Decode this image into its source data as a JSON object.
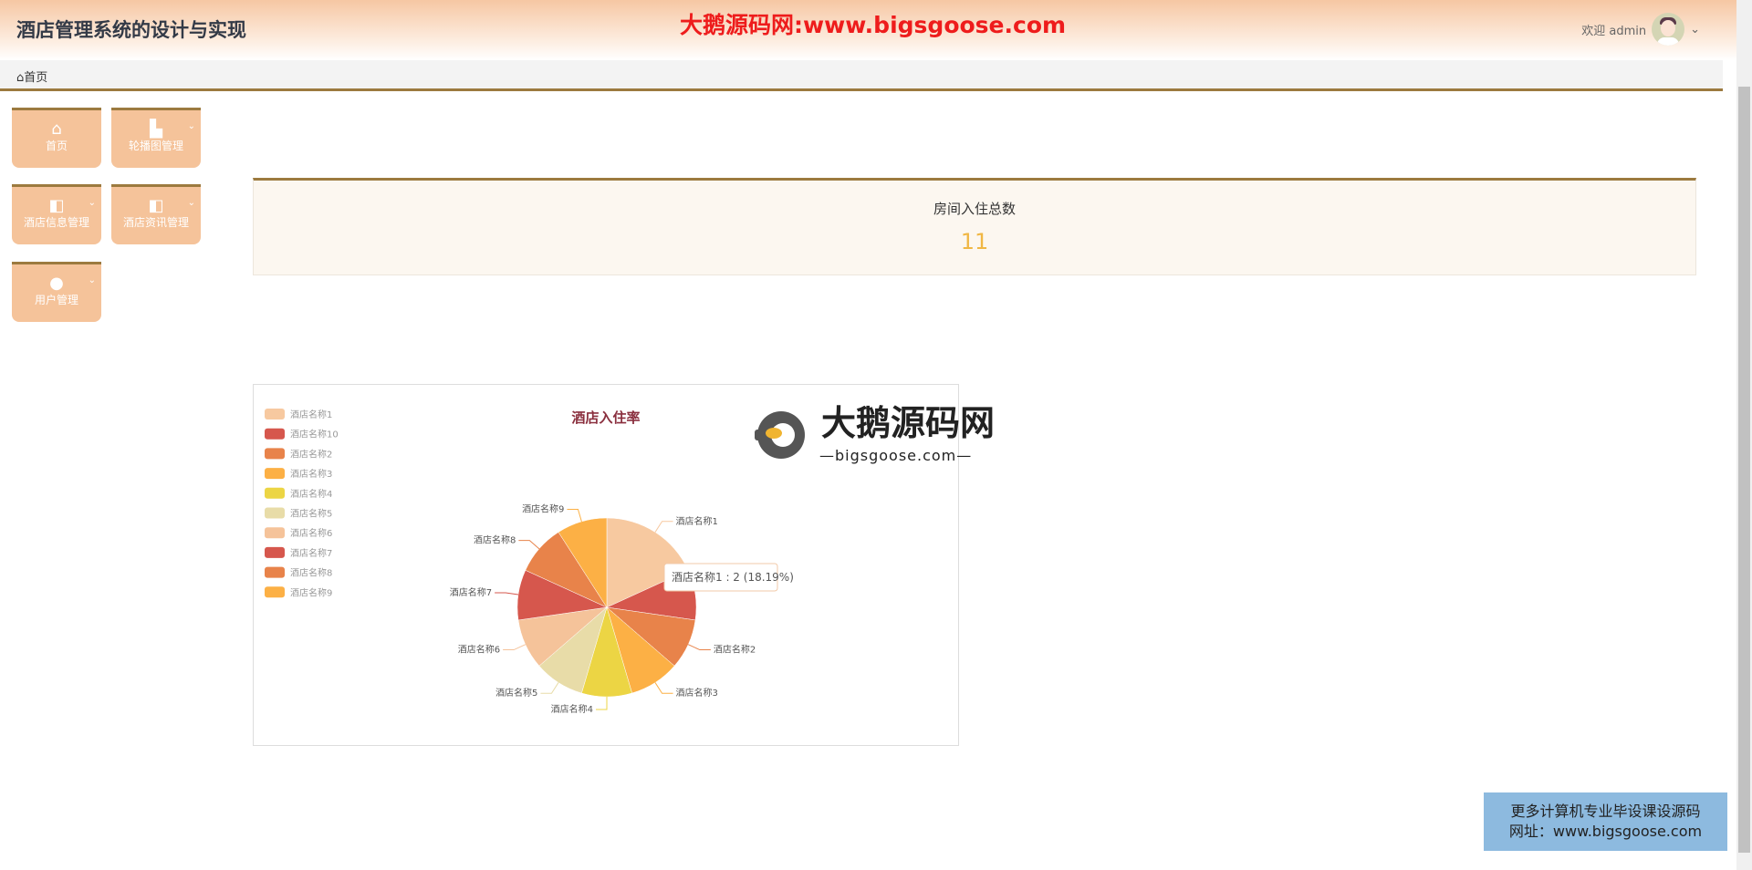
{
  "header": {
    "title": "酒店管理系统的设计与实现",
    "watermark": "大鹅源码网:www.bigsgoose.com",
    "welcome": "欢迎 admin"
  },
  "breadcrumb": {
    "home": "首页"
  },
  "menu": [
    {
      "label": "首页",
      "icon": "home-icon"
    },
    {
      "label": "轮播图管理",
      "icon": "building-icon"
    },
    {
      "label": "酒店信息管理",
      "icon": "panel-icon"
    },
    {
      "label": "酒店资讯管理",
      "icon": "panel-icon"
    },
    {
      "label": "用户管理",
      "icon": "user-icon"
    }
  ],
  "stat": {
    "label": "房间入住总数",
    "value": "11"
  },
  "logo_watermark": {
    "title": "大鹅源码网",
    "sub": "—bigsgoose.com—"
  },
  "promo": {
    "line1": "更多计算机专业毕设课设源码",
    "line2": "网址：www.bigsgoose.com"
  },
  "chart_data": {
    "type": "pie",
    "title": "酒店入住率",
    "legend": "top-left",
    "categories": [
      "酒店名称1",
      "酒店名称10",
      "酒店名称2",
      "酒店名称3",
      "酒店名称4",
      "酒店名称5",
      "酒店名称6",
      "酒店名称7",
      "酒店名称8",
      "酒店名称9"
    ],
    "values": [
      2,
      1,
      1,
      1,
      1,
      1,
      1,
      1,
      1,
      1
    ],
    "colors": [
      "#f7c9a0",
      "#d6574d",
      "#e8834a",
      "#fcb045",
      "#ecd544",
      "#e8dca8",
      "#f5c39a",
      "#d6574d",
      "#e8834a",
      "#fcb045"
    ],
    "tooltip": "酒店名称1 : 2 (18.19%)"
  }
}
